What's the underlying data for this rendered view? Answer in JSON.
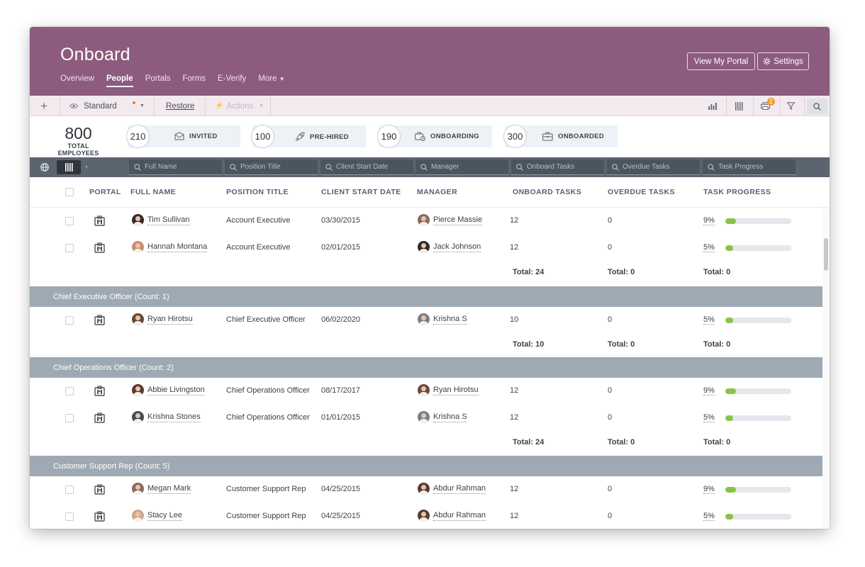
{
  "header": {
    "app_title": "Onboard",
    "nav": [
      "Overview",
      "People",
      "Portals",
      "Forms",
      "E-Verify",
      "More"
    ],
    "active_nav": "People",
    "view_portal_label": "View My Portal",
    "settings_label": "Settings",
    "brand_color": "#8c5b7e"
  },
  "toolbar": {
    "view_label": "Standard",
    "restore_label": "Restore",
    "actions_label": "Actions",
    "notification_badge": "2"
  },
  "stats": {
    "total": "800",
    "total_label": "TOTAL EMPLOYEES",
    "cards": [
      {
        "count": "210",
        "label": "INVITED",
        "icon": "envelope-icon"
      },
      {
        "count": "100",
        "label": "PRE-HIRED",
        "icon": "rocket-icon"
      },
      {
        "count": "190",
        "label": "ONBOARDING",
        "icon": "briefcase-clock-icon"
      },
      {
        "count": "300",
        "label": "ONBOARDED",
        "icon": "briefcase-icon"
      }
    ]
  },
  "filters": {
    "full_name": "Full Name",
    "position_title": "Position Title",
    "client_start_date": "Client Start Date",
    "manager": "Manager",
    "onboard_tasks": "Onboard Tasks",
    "overdue_tasks": "Overdue Tasks",
    "task_progress": "Task Progress"
  },
  "columns": {
    "portal": "PORTAL",
    "full_name": "FULL NAME",
    "position_title": "POSITION TITLE",
    "client_start_date": "CLIENT START DATE",
    "manager": "MANAGER",
    "onboard_tasks": "ONBOARD TASKS",
    "overdue_tasks": "OVERDUE TASKS",
    "task_progress": "TASK PROGRESS"
  },
  "rows": [
    {
      "name": "Tim Sullivan",
      "position": "Account Executive",
      "start": "03/30/2015",
      "manager": "Pierce Massie",
      "onboard": "12",
      "overdue": "0",
      "progress": "9%",
      "progress_value": 0.09
    },
    {
      "name": "Hannah Montana",
      "position": "Account Executive",
      "start": "02/01/2015",
      "manager": "Jack Johnson",
      "onboard": "12",
      "overdue": "0",
      "progress": "5%",
      "progress_value": 0.05
    },
    {
      "name": "Ryan Hirotsu",
      "position": "Chief Executive Officer",
      "start": "06/02/2020",
      "manager": "Krishna S",
      "onboard": "10",
      "overdue": "0",
      "progress": "5%",
      "progress_value": 0.05
    },
    {
      "name": "Abbie Livingston",
      "position": "Chief Operations Officer",
      "start": "08/17/2017",
      "manager": "Ryan Hirotsu",
      "onboard": "12",
      "overdue": "0",
      "progress": "9%",
      "progress_value": 0.09
    },
    {
      "name": "Krishna Stones",
      "position": "Chief Operations Officer",
      "start": "01/01/2015",
      "manager": "Krishna S",
      "onboard": "12",
      "overdue": "0",
      "progress": "5%",
      "progress_value": 0.05
    },
    {
      "name": "Megan Mark",
      "position": "Customer Support Rep",
      "start": "04/25/2015",
      "manager": "Abdur Rahman",
      "onboard": "12",
      "overdue": "0",
      "progress": "9%",
      "progress_value": 0.09
    },
    {
      "name": "Stacy Lee",
      "position": "Customer Support Rep",
      "start": "04/25/2015",
      "manager": "Abdur Rahman",
      "onboard": "12",
      "overdue": "0",
      "progress": "5%",
      "progress_value": 0.05
    }
  ],
  "totals": [
    {
      "onboard": "Total: 24",
      "overdue": "Total: 0",
      "progress": "Total: 0"
    },
    {
      "onboard": "Total: 10",
      "overdue": "Total: 0",
      "progress": "Total: 0"
    },
    {
      "onboard": "Total: 24",
      "overdue": "Total: 0",
      "progress": "Total: 0"
    }
  ],
  "groups": [
    "Chief Executive Officer (Count: 1)",
    "Chief Operations Officer (Count: 2)",
    "Customer Support Rep (Count: 5)"
  ]
}
